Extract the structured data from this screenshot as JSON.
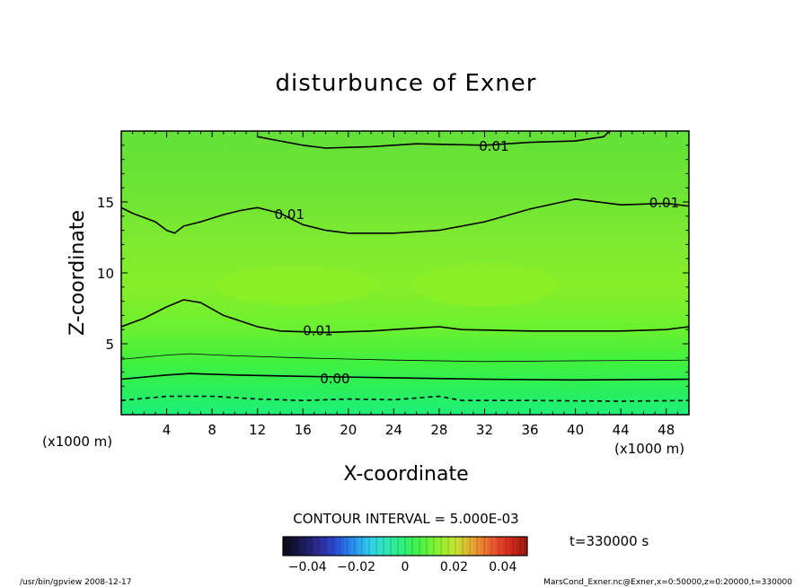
{
  "chart_data": {
    "type": "contour",
    "title": "disturbunce of Exner",
    "xlabel": "X-coordinate",
    "ylabel": "Z-coordinate",
    "x_unit_left": "(x1000 m)",
    "x_unit_right": "(x1000 m)",
    "xlim": [
      0,
      50
    ],
    "ylim": [
      0,
      20
    ],
    "x_ticks": [
      4,
      8,
      12,
      16,
      20,
      24,
      28,
      32,
      36,
      40,
      44,
      48
    ],
    "x_tick_labels": [
      "4",
      "8",
      "12",
      "16",
      "20",
      "24",
      "28",
      "32",
      "36",
      "40",
      "44",
      "48"
    ],
    "y_ticks": [
      5,
      10,
      15
    ],
    "y_tick_labels": [
      "5",
      "10",
      "15"
    ],
    "contour_interval_text": "CONTOUR INTERVAL = 5.000E-03",
    "time_text": "t=330000 s",
    "colorbar": {
      "range": [
        -0.05,
        0.05
      ],
      "tick_values": [
        -0.04,
        -0.02,
        0,
        0.02,
        0.04
      ],
      "tick_labels": [
        "−0.04",
        "−0.02",
        "0",
        "0.02",
        "0.04"
      ],
      "colors": [
        "#0a0a18",
        "#1a1a55",
        "#2c2c9a",
        "#2a4ed8",
        "#2a90f0",
        "#30d0e8",
        "#30e8b0",
        "#30f070",
        "#50f040",
        "#90f030",
        "#c8e030",
        "#e8a030",
        "#e86030",
        "#d83020",
        "#a01810"
      ]
    },
    "contours": [
      {
        "label": "0.00",
        "level": 0.0,
        "dashed": false,
        "points": [
          [
            0,
            2.5
          ],
          [
            4,
            2.8
          ],
          [
            6,
            2.9
          ],
          [
            10,
            2.8
          ],
          [
            16,
            2.7
          ],
          [
            24,
            2.6
          ],
          [
            32,
            2.5
          ],
          [
            40,
            2.45
          ],
          [
            50,
            2.5
          ]
        ]
      },
      {
        "label": "0.01",
        "level": 0.01,
        "dashed": false,
        "points": [
          [
            0,
            6.2
          ],
          [
            2,
            6.8
          ],
          [
            4,
            7.6
          ],
          [
            5.5,
            8.1
          ],
          [
            7,
            7.9
          ],
          [
            9,
            7.0
          ],
          [
            12,
            6.2
          ],
          [
            14,
            5.9
          ],
          [
            18,
            5.8
          ],
          [
            22,
            5.9
          ],
          [
            26,
            6.1
          ],
          [
            28,
            6.2
          ],
          [
            30,
            6.0
          ],
          [
            36,
            5.9
          ],
          [
            44,
            5.9
          ],
          [
            48,
            6.0
          ],
          [
            50,
            6.2
          ]
        ]
      },
      {
        "label": "0.01",
        "level": 0.01,
        "dashed": false,
        "points": [
          [
            0,
            14.6
          ],
          [
            1,
            14.2
          ],
          [
            2,
            13.9
          ],
          [
            3,
            13.6
          ],
          [
            4,
            13.0
          ],
          [
            4.7,
            12.8
          ],
          [
            5.5,
            13.3
          ],
          [
            7,
            13.6
          ],
          [
            9,
            14.1
          ],
          [
            10.5,
            14.4
          ],
          [
            12,
            14.6
          ],
          [
            14,
            14.2
          ],
          [
            16,
            13.4
          ],
          [
            18,
            13.0
          ],
          [
            20,
            12.8
          ],
          [
            24,
            12.8
          ],
          [
            28,
            13.0
          ],
          [
            32,
            13.6
          ],
          [
            36,
            14.5
          ],
          [
            40,
            15.2
          ],
          [
            44,
            14.8
          ],
          [
            48,
            14.9
          ],
          [
            50,
            14.7
          ]
        ]
      },
      {
        "label": "0.01",
        "level": 0.01,
        "dashed": false,
        "points": [
          [
            12,
            19.6
          ],
          [
            14,
            19.3
          ],
          [
            16,
            19.0
          ],
          [
            18,
            18.8
          ],
          [
            22,
            18.9
          ],
          [
            26,
            19.1
          ],
          [
            32,
            19.0
          ],
          [
            36,
            19.2
          ],
          [
            40,
            19.3
          ],
          [
            42.5,
            19.6
          ],
          [
            43,
            20
          ]
        ]
      },
      {
        "label": "",
        "level": -0.005,
        "dashed": true,
        "points": [
          [
            0,
            1.0
          ],
          [
            4,
            1.3
          ],
          [
            8,
            1.3
          ],
          [
            12,
            1.1
          ],
          [
            16,
            1.0
          ],
          [
            20,
            1.1
          ],
          [
            24,
            1.05
          ],
          [
            28,
            1.3
          ],
          [
            30,
            1.0
          ],
          [
            36,
            1.0
          ],
          [
            44,
            0.95
          ],
          [
            50,
            1.0
          ]
        ]
      },
      {
        "label": "",
        "level": 0.005,
        "dashed": false,
        "thin": true,
        "points": [
          [
            0,
            3.9
          ],
          [
            4,
            4.2
          ],
          [
            6,
            4.3
          ],
          [
            10,
            4.15
          ],
          [
            16,
            4.0
          ],
          [
            24,
            3.85
          ],
          [
            32,
            3.75
          ],
          [
            40,
            3.8
          ],
          [
            50,
            3.85
          ]
        ]
      }
    ],
    "contour_label_positions": [
      {
        "label": "0.00",
        "x": 17.5,
        "y": 2.4
      },
      {
        "label": "0.01",
        "x": 16,
        "y": 5.8
      },
      {
        "label": "0.01",
        "x": 13.5,
        "y": 14.0
      },
      {
        "label": "0.01",
        "x": 31.5,
        "y": 18.8
      },
      {
        "label": "0.01",
        "x": 46.5,
        "y": 14.8
      }
    ]
  },
  "footer": {
    "left": "/usr/bin/gpview  2008-12-17",
    "right": "MarsCond_Exner.nc@Exner,x=0:50000,z=0:20000,t=330000"
  }
}
